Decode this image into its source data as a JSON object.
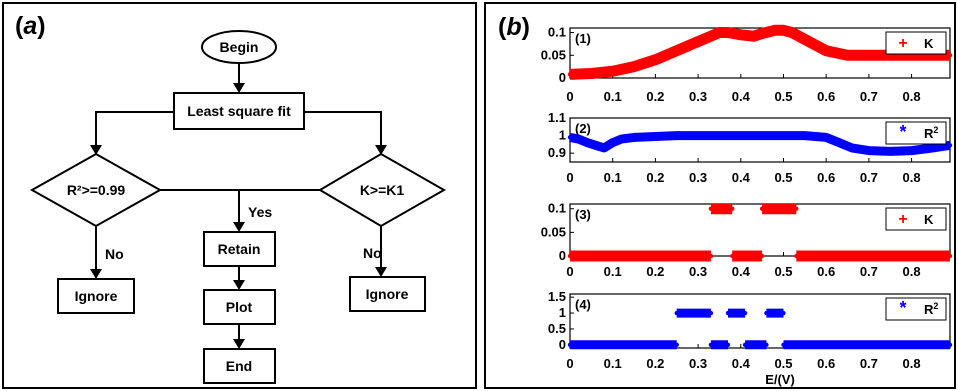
{
  "panel_a": {
    "label_open": "(",
    "label_letter": "a",
    "label_close": ")",
    "nodes": {
      "begin": "Begin",
      "fit": "Least square fit",
      "r2": "R²>=0.99",
      "k": "K>=K1",
      "retain": "Retain",
      "plot": "Plot",
      "end": "End",
      "ignore_left": "Ignore",
      "ignore_right": "Ignore"
    },
    "edges": {
      "yes": "Yes",
      "no_left": "No",
      "no_right": "No"
    }
  },
  "panel_b": {
    "label_open": "(",
    "label_letter": "b",
    "label_close": ")"
  },
  "chart_data": [
    {
      "type": "scatter",
      "panel": "(1)",
      "series": [
        {
          "name": "K",
          "marker": "+",
          "color": "#ff0000",
          "x": [
            0,
            0.05,
            0.1,
            0.15,
            0.2,
            0.25,
            0.3,
            0.33,
            0.35,
            0.37,
            0.4,
            0.43,
            0.45,
            0.48,
            0.5,
            0.52,
            0.55,
            0.6,
            0.65,
            0.7,
            0.75,
            0.8,
            0.85,
            0.89
          ],
          "y": [
            0.008,
            0.01,
            0.015,
            0.025,
            0.04,
            0.06,
            0.08,
            0.092,
            0.1,
            0.1,
            0.095,
            0.092,
            0.098,
            0.105,
            0.105,
            0.1,
            0.085,
            0.06,
            0.05,
            0.05,
            0.05,
            0.05,
            0.05,
            0.05
          ]
        }
      ],
      "xlim": [
        0,
        0.89
      ],
      "ylim": [
        0,
        0.11
      ],
      "x_ticks": [
        "0",
        "0.1",
        "0.2",
        "0.3",
        "0.4",
        "0.5",
        "0.6",
        "0.7",
        "0.8"
      ],
      "y_ticks": [
        "0",
        "0.05",
        "0.1"
      ]
    },
    {
      "type": "scatter",
      "panel": "(2)",
      "series": [
        {
          "name": "R",
          "name_sup": "2",
          "marker": "*",
          "color": "#0000ff",
          "x": [
            0,
            0.02,
            0.04,
            0.06,
            0.08,
            0.1,
            0.12,
            0.15,
            0.2,
            0.25,
            0.3,
            0.35,
            0.4,
            0.45,
            0.5,
            0.55,
            0.6,
            0.63,
            0.66,
            0.7,
            0.75,
            0.8,
            0.85,
            0.89
          ],
          "y": [
            0.99,
            0.98,
            0.96,
            0.945,
            0.93,
            0.96,
            0.98,
            0.99,
            0.995,
            1,
            1,
            1,
            1,
            1,
            1,
            1,
            0.99,
            0.96,
            0.93,
            0.915,
            0.91,
            0.915,
            0.93,
            0.945
          ]
        }
      ],
      "xlim": [
        0,
        0.89
      ],
      "ylim": [
        0.85,
        1.1
      ],
      "x_ticks": [
        "0",
        "0.1",
        "0.2",
        "0.3",
        "0.4",
        "0.5",
        "0.6",
        "0.7",
        "0.8"
      ],
      "y_ticks": [
        "0.9",
        "1",
        "1.1"
      ]
    },
    {
      "type": "scatter",
      "panel": "(3)",
      "series": [
        {
          "name": "K",
          "marker": "+",
          "color": "#ff0000",
          "segments": [
            {
              "x": [
                0,
                0.33
              ],
              "y": [
                0,
                0
              ]
            },
            {
              "x": [
                0.33,
                0.38
              ],
              "y": [
                0.1,
                0.1
              ]
            },
            {
              "x": [
                0.38,
                0.45
              ],
              "y": [
                0,
                0
              ]
            },
            {
              "x": [
                0.45,
                0.53
              ],
              "y": [
                0.1,
                0.1
              ]
            },
            {
              "x": [
                0.53,
                0.89
              ],
              "y": [
                0,
                0
              ]
            }
          ]
        }
      ],
      "xlim": [
        0,
        0.89
      ],
      "ylim": [
        0,
        0.11
      ],
      "x_ticks": [
        "0",
        "0.1",
        "0.2",
        "0.3",
        "0.4",
        "0.5",
        "0.6",
        "0.7",
        "0.8"
      ],
      "y_ticks": [
        "0",
        "0.05",
        "0.1"
      ]
    },
    {
      "type": "scatter",
      "panel": "(4)",
      "series": [
        {
          "name": "R",
          "name_sup": "2",
          "marker": "*",
          "color": "#0000ff",
          "segments": [
            {
              "x": [
                0,
                0.25
              ],
              "y": [
                0,
                0
              ]
            },
            {
              "x": [
                0.25,
                0.33
              ],
              "y": [
                1,
                1
              ]
            },
            {
              "x": [
                0.33,
                0.37
              ],
              "y": [
                0,
                0
              ]
            },
            {
              "x": [
                0.37,
                0.41
              ],
              "y": [
                1,
                1
              ]
            },
            {
              "x": [
                0.41,
                0.46
              ],
              "y": [
                0,
                0
              ]
            },
            {
              "x": [
                0.46,
                0.5
              ],
              "y": [
                1,
                1
              ]
            },
            {
              "x": [
                0.5,
                0.89
              ],
              "y": [
                0,
                0
              ]
            }
          ]
        }
      ],
      "xlim": [
        0,
        0.89
      ],
      "ylim": [
        -0.1,
        1.6
      ],
      "x_ticks": [
        "0",
        "0.1",
        "0.2",
        "0.3",
        "0.4",
        "0.5",
        "0.6",
        "0.7",
        "0.8"
      ],
      "y_ticks": [
        "0",
        "0.5",
        "1",
        "1.5"
      ],
      "xlabel": "E/(V)"
    }
  ]
}
